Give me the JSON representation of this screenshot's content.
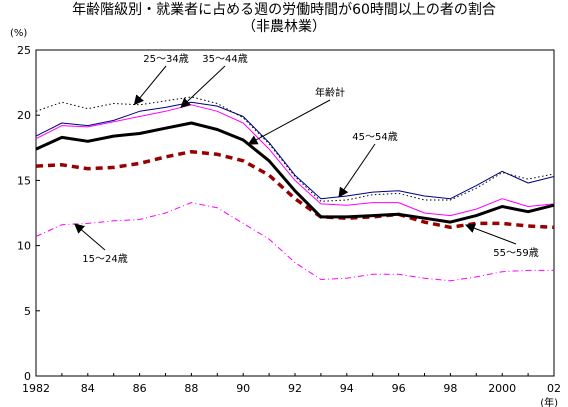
{
  "title_line1": "年齢階級別・就業者に占める週の労働時間が60時間以上の者の割合",
  "title_line2": "（非農林業）",
  "colors": {
    "total": "#000000",
    "age_15_24": "#ff00ff",
    "age_25_34": "#000000",
    "age_35_44": "#ff00ff",
    "age_45_54": "#000080",
    "age_55_59": "#990000"
  },
  "chart_data": {
    "type": "line",
    "title": "年齢階級別・就業者に占める週の労働時間が60時間以上の者の割合（非農林業）",
    "ylabel": "(%)",
    "xlabel": "(年)",
    "ylim": [
      0,
      25
    ],
    "xlim": [
      1982,
      2002
    ],
    "yticks": [
      0,
      5,
      10,
      15,
      20,
      25
    ],
    "xtick_labels": [
      {
        "x": 1982,
        "label": "1982"
      },
      {
        "x": 1984,
        "label": "84"
      },
      {
        "x": 1986,
        "label": "86"
      },
      {
        "x": 1988,
        "label": "88"
      },
      {
        "x": 1990,
        "label": "90"
      },
      {
        "x": 1992,
        "label": "92"
      },
      {
        "x": 1994,
        "label": "94"
      },
      {
        "x": 1996,
        "label": "96"
      },
      {
        "x": 1998,
        "label": "98"
      },
      {
        "x": 2000,
        "label": "2000"
      },
      {
        "x": 2002,
        "label": "02"
      }
    ],
    "x": [
      1982,
      1983,
      1984,
      1985,
      1986,
      1987,
      1988,
      1989,
      1990,
      1991,
      1992,
      1993,
      1994,
      1995,
      1996,
      1997,
      1998,
      1999,
      2000,
      2001,
      2002
    ],
    "series": [
      {
        "key": "total",
        "name": "年齢計",
        "style": "thick",
        "values": [
          17.4,
          18.3,
          18.0,
          18.4,
          18.6,
          19.0,
          19.4,
          18.9,
          18.1,
          16.5,
          14.2,
          12.2,
          12.2,
          12.3,
          12.4,
          12.1,
          11.8,
          12.3,
          13.0,
          12.6,
          13.1
        ]
      },
      {
        "key": "age_15_24",
        "name": "15～24歳",
        "style": "dashdot",
        "values": [
          10.7,
          11.6,
          11.7,
          11.9,
          12.0,
          12.5,
          13.3,
          12.9,
          11.7,
          10.5,
          8.7,
          7.4,
          7.5,
          7.8,
          7.8,
          7.5,
          7.3,
          7.6,
          8.0,
          8.1,
          8.1
        ]
      },
      {
        "key": "age_25_34",
        "name": "25～34歳",
        "style": "dotted",
        "values": [
          20.3,
          21.0,
          20.5,
          20.9,
          20.8,
          21.1,
          21.4,
          20.9,
          19.8,
          17.8,
          15.3,
          13.4,
          13.5,
          13.9,
          14.0,
          13.5,
          13.5,
          14.4,
          15.6,
          15.1,
          15.5
        ]
      },
      {
        "key": "age_35_44",
        "name": "35～44歳",
        "style": "solid",
        "values": [
          18.2,
          19.2,
          19.1,
          19.5,
          19.9,
          20.3,
          20.8,
          20.3,
          19.4,
          17.4,
          15.0,
          13.2,
          13.1,
          13.3,
          13.3,
          12.5,
          12.3,
          12.8,
          13.6,
          13.0,
          13.2
        ]
      },
      {
        "key": "age_45_54",
        "name": "45～54歳",
        "style": "solid",
        "values": [
          18.4,
          19.4,
          19.2,
          19.6,
          20.3,
          20.6,
          21.0,
          20.7,
          19.9,
          17.9,
          15.4,
          13.6,
          13.8,
          14.1,
          14.2,
          13.8,
          13.6,
          14.6,
          15.7,
          14.8,
          15.3
        ]
      },
      {
        "key": "age_55_59",
        "name": "55～59歳",
        "style": "thickdash",
        "values": [
          16.1,
          16.2,
          15.9,
          16.0,
          16.3,
          16.8,
          17.2,
          17.0,
          16.5,
          15.4,
          13.6,
          12.2,
          12.1,
          12.2,
          12.4,
          11.8,
          11.4,
          11.7,
          11.7,
          11.5,
          11.4
        ]
      }
    ],
    "annotations": [
      {
        "text": "25～34歳",
        "series": "age_25_34"
      },
      {
        "text": "35～44歳",
        "series": "age_35_44"
      },
      {
        "text": "年齢計",
        "series": "total"
      },
      {
        "text": "45～54歳",
        "series": "age_45_54"
      },
      {
        "text": "15～24歳",
        "series": "age_15_24"
      },
      {
        "text": "55～59歳",
        "series": "age_55_59"
      }
    ],
    "grid": false,
    "legend": "none"
  }
}
